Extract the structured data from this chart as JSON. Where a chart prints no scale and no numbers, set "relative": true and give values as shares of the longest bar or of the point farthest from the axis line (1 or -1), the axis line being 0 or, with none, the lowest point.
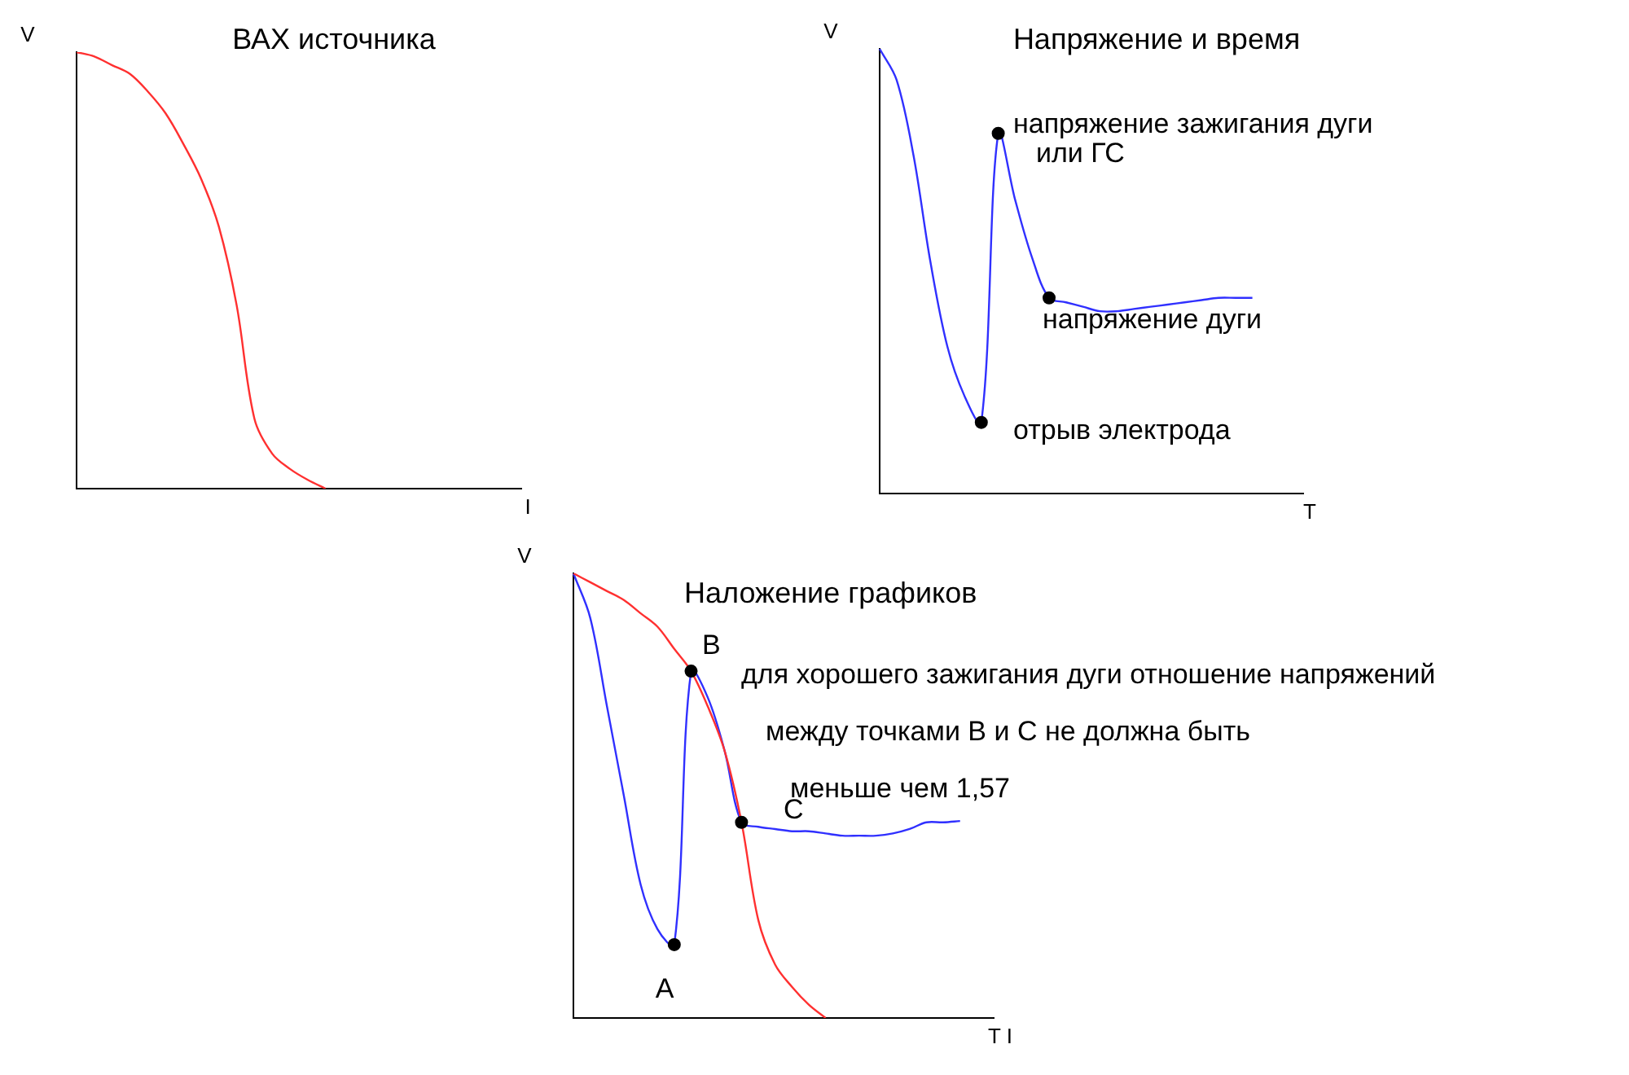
{
  "chart_data": [
    {
      "type": "line",
      "title": "ВАХ источника",
      "xlabel": "I",
      "ylabel": "V",
      "relative": true,
      "grid": false,
      "legend": false,
      "categories": [
        null,
        null,
        null,
        null,
        null,
        null,
        null,
        null,
        null,
        null,
        null,
        null,
        null,
        null,
        null,
        null,
        null,
        null,
        null,
        null,
        null,
        null,
        null,
        null,
        null,
        null
      ],
      "series": [
        {
          "color": "#ff3030",
          "values": [
            1,
            0.99,
            0.97,
            0.95,
            0.91,
            0.86,
            0.79,
            0.71,
            0.6,
            0.42,
            0.16,
            0.08,
            0.045,
            0.02,
            0,
            null,
            null,
            null,
            null,
            null,
            null,
            null,
            null,
            null,
            null,
            null
          ]
        }
      ]
    },
    {
      "type": "line",
      "title": "Напряжение и время",
      "xlabel": "T",
      "ylabel": "V",
      "relative": true,
      "grid": false,
      "legend": false,
      "categories": [
        null,
        null,
        null,
        null,
        null,
        null,
        null,
        null,
        null,
        null,
        null,
        null,
        null,
        null,
        null,
        null,
        null,
        null,
        null,
        null,
        null,
        null,
        null,
        null,
        null,
        null
      ],
      "series": [
        {
          "color": "#3030ff",
          "values": [
            1,
            0.93,
            0.76,
            0.52,
            0.33,
            0.22,
            0.16,
            0.81,
            0.66,
            0.53,
            0.44,
            0.43,
            0.42,
            0.41,
            0.41,
            0.415,
            0.42,
            0.425,
            0.43,
            0.435,
            0.44,
            0.44,
            0.44,
            null,
            null,
            null
          ]
        }
      ],
      "annotations": [
        "напряжение зажигания дуги\nили ГС",
        "напряжение дуги",
        "отрыв электрода"
      ]
    },
    {
      "type": "line",
      "title": "Наложение графиков",
      "xlabel": "T I",
      "ylabel": "V",
      "relative": true,
      "grid": false,
      "legend": false,
      "categories": [
        null,
        null,
        null,
        null,
        null,
        null,
        null,
        null,
        null,
        null,
        null,
        null,
        null,
        null,
        null,
        null,
        null,
        null,
        null,
        null,
        null,
        null,
        null,
        null,
        null,
        null
      ],
      "series": [
        {
          "color": "#ff3030",
          "values": [
            1,
            0.98,
            0.96,
            0.94,
            0.91,
            0.88,
            0.83,
            0.78,
            0.7,
            0.6,
            0.44,
            0.22,
            0.12,
            0.07,
            0.03,
            0,
            null,
            null,
            null,
            null,
            null,
            null,
            null,
            null,
            null,
            null
          ]
        },
        {
          "color": "#3030ff",
          "values": [
            1,
            0.9,
            0.7,
            0.5,
            0.3,
            0.2,
            0.165,
            0.78,
            0.72,
            0.6,
            0.44,
            0.43,
            0.425,
            0.42,
            0.42,
            0.415,
            0.41,
            0.41,
            0.41,
            0.415,
            0.425,
            0.44,
            0.44,
            0.443,
            null,
            null
          ]
        }
      ],
      "annotations": [
        "A",
        "B",
        "C",
        "для хорошего зажигания дуги отношение напряжений",
        "между точками В и С не должна быть",
        "меньше чем 1,57"
      ]
    }
  ]
}
